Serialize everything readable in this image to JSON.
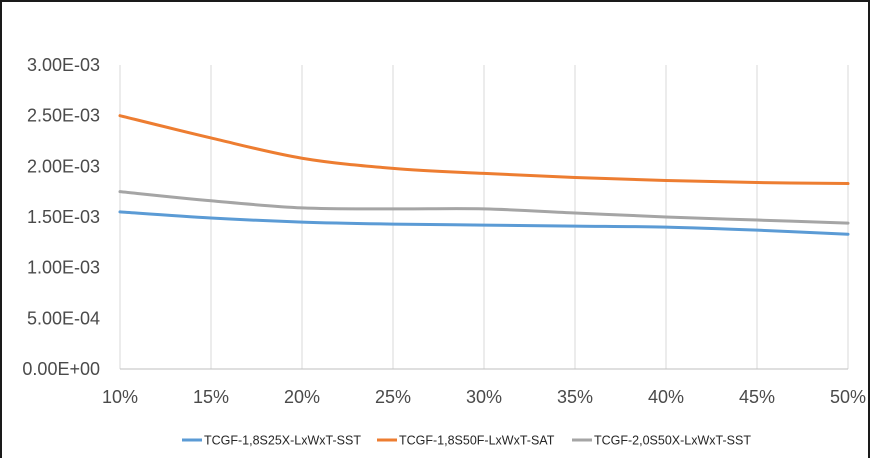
{
  "chart_data": {
    "type": "line",
    "title": "",
    "xlabel": "",
    "ylabel": "",
    "x": [
      10,
      15,
      20,
      25,
      30,
      35,
      40,
      45,
      50
    ],
    "x_tick_labels": [
      "10%",
      "15%",
      "20%",
      "25%",
      "30%",
      "35%",
      "40%",
      "45%",
      "50%"
    ],
    "y_tick_labels": [
      "0.00E+00",
      "5.00E-04",
      "1.00E-03",
      "1.50E-03",
      "2.00E-03",
      "2.50E-03",
      "3.00E-03"
    ],
    "y_ticks": [
      0,
      0.0005,
      0.001,
      0.0015,
      0.002,
      0.0025,
      0.003
    ],
    "xlim": [
      10,
      50
    ],
    "ylim": [
      0,
      0.003
    ],
    "grid": "vertical",
    "legend_position": "bottom",
    "series": [
      {
        "name": "TCGF-1,8S25X-LxWxT-SST",
        "color": "#5b9bd5",
        "values": [
          0.00155,
          0.00149,
          0.00145,
          0.00143,
          0.00142,
          0.00141,
          0.0014,
          0.00137,
          0.00133
        ]
      },
      {
        "name": "TCGF-1,8S50F-LxWxT-SAT",
        "color": "#ed7d31",
        "values": [
          0.0025,
          0.00228,
          0.00208,
          0.00198,
          0.00193,
          0.00189,
          0.00186,
          0.00184,
          0.00183
        ]
      },
      {
        "name": "TCGF-2,0S50X-LxWxT-SST",
        "color": "#a5a5a5",
        "values": [
          0.00175,
          0.00166,
          0.00159,
          0.00158,
          0.00158,
          0.00154,
          0.0015,
          0.00147,
          0.00144
        ]
      }
    ]
  }
}
